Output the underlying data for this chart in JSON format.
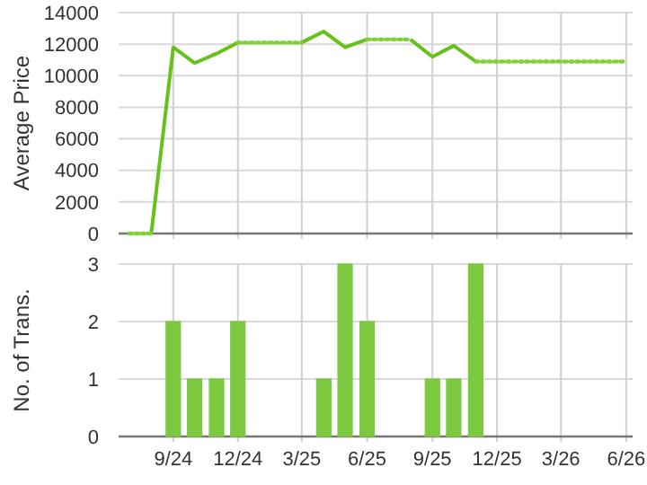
{
  "chart_data": [
    {
      "type": "line",
      "ylabel": "Average Price",
      "series": [
        {
          "color": "#66c21a",
          "line_style": "solid",
          "x": [
            "2024-08",
            "2024-09",
            "2024-10",
            "2024-11",
            "2024-12",
            "2025-01",
            "2025-02",
            "2025-03",
            "2025-04",
            "2025-05",
            "2025-06",
            "2025-07",
            "2025-08",
            "2025-09",
            "2025-10",
            "2025-11"
          ],
          "values": [
            0,
            11800,
            10800,
            11400,
            12100,
            null,
            null,
            12100,
            12800,
            11800,
            12300,
            null,
            12300,
            11200,
            11900,
            10900
          ]
        },
        {
          "color": "#82d13a",
          "line_style": "dotted",
          "x": [
            "2024-07",
            "2024-08"
          ],
          "values": [
            0,
            0
          ]
        },
        {
          "color": "#82d13a",
          "line_style": "dotted",
          "x": [
            "2024-12",
            "2025-01",
            "2025-02",
            "2025-03"
          ],
          "values": [
            12100,
            12100,
            12100,
            12100
          ]
        },
        {
          "color": "#82d13a",
          "line_style": "dotted",
          "x": [
            "2025-06",
            "2025-07",
            "2025-08"
          ],
          "values": [
            12300,
            12300,
            12300
          ]
        },
        {
          "color": "#82d13a",
          "line_style": "dotted",
          "x": [
            "2025-11",
            "2025-12",
            "2026-01",
            "2026-02",
            "2026-03",
            "2026-04",
            "2026-05",
            "2026-06"
          ],
          "values": [
            10900,
            10900,
            10900,
            10900,
            10900,
            10900,
            10900,
            10900
          ]
        }
      ],
      "xlim": [
        "2024-06-16",
        "2026-06-10"
      ],
      "xticks": [
        {
          "value": "2024-09",
          "label": null
        },
        {
          "value": "2024-12",
          "label": null
        },
        {
          "value": "2025-03",
          "label": null
        },
        {
          "value": "2025-06",
          "label": null
        },
        {
          "value": "2025-09",
          "label": null
        },
        {
          "value": "2025-12",
          "label": null
        },
        {
          "value": "2026-03",
          "label": null
        },
        {
          "value": "2026-06",
          "label": null
        }
      ],
      "ylim": [
        0,
        14000
      ],
      "yticks": [
        0,
        2000,
        4000,
        6000,
        8000,
        10000,
        12000,
        14000
      ],
      "grid": true,
      "marker": "none",
      "tick_labels": "y"
    },
    {
      "type": "bar",
      "ylabel": "No. of Trans.",
      "x": [
        "2024-09",
        "2024-10",
        "2024-11",
        "2024-12",
        "2025-04",
        "2025-05",
        "2025-06",
        "2025-09",
        "2025-10",
        "2025-11"
      ],
      "values": [
        2,
        1,
        1,
        2,
        1,
        3,
        2,
        1,
        1,
        3
      ],
      "color": "#7cc940",
      "xlim": [
        "2024-06-16",
        "2026-06-10"
      ],
      "xticks": [
        {
          "value": "2024-09",
          "label": "9/24"
        },
        {
          "value": "2024-12",
          "label": "12/24"
        },
        {
          "value": "2025-03",
          "label": "3/25"
        },
        {
          "value": "2025-06",
          "label": "6/25"
        },
        {
          "value": "2025-09",
          "label": "9/25"
        },
        {
          "value": "2025-12",
          "label": "12/25"
        },
        {
          "value": "2026-03",
          "label": "3/26"
        },
        {
          "value": "2026-06",
          "label": "6/26"
        }
      ],
      "ylim": [
        0,
        3
      ],
      "yticks": [
        0,
        1,
        2,
        3
      ],
      "grid": true
    }
  ]
}
